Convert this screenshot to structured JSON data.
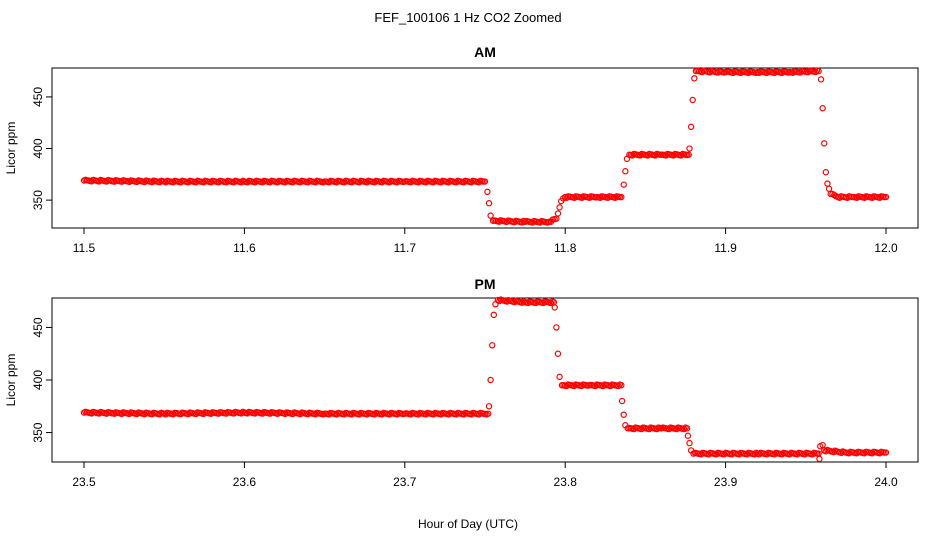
{
  "figure": {
    "suptitle": "FEF_100106  1 Hz CO2 Zoomed",
    "xlabel": "Hour of Day (UTC)"
  },
  "chart_data": [
    {
      "type": "scatter",
      "title": "AM",
      "ylabel": "Licor ppm",
      "xlabel": "",
      "xlim": [
        11.5,
        12.0
      ],
      "ylim": [
        323,
        478
      ],
      "x_ticks": [
        "11.5",
        "11.6",
        "11.7",
        "11.8",
        "11.9",
        "12.0"
      ],
      "y_ticks": [
        "350",
        "400",
        "450"
      ],
      "marker": "open-circle",
      "color": "#ff0000",
      "points": [
        {
          "x": 11.5,
          "y": 369
        },
        {
          "x": 11.55,
          "y": 368
        },
        {
          "x": 11.6,
          "y": 368
        },
        {
          "x": 11.65,
          "y": 368
        },
        {
          "x": 11.7,
          "y": 368
        },
        {
          "x": 11.75,
          "y": 368
        },
        {
          "x": 11.7515,
          "y": 358
        },
        {
          "x": 11.7525,
          "y": 347
        },
        {
          "x": 11.7535,
          "y": 335
        },
        {
          "x": 11.755,
          "y": 330
        },
        {
          "x": 11.775,
          "y": 329
        },
        {
          "x": 11.79,
          "y": 329
        },
        {
          "x": 11.7945,
          "y": 332
        },
        {
          "x": 11.7955,
          "y": 337
        },
        {
          "x": 11.7965,
          "y": 343
        },
        {
          "x": 11.7975,
          "y": 349
        },
        {
          "x": 11.8,
          "y": 353
        },
        {
          "x": 11.82,
          "y": 353
        },
        {
          "x": 11.835,
          "y": 353
        },
        {
          "x": 11.8365,
          "y": 365
        },
        {
          "x": 11.8375,
          "y": 378
        },
        {
          "x": 11.8385,
          "y": 390
        },
        {
          "x": 11.84,
          "y": 394
        },
        {
          "x": 11.86,
          "y": 394
        },
        {
          "x": 11.877,
          "y": 394
        },
        {
          "x": 11.8775,
          "y": 400
        },
        {
          "x": 11.8785,
          "y": 421
        },
        {
          "x": 11.8795,
          "y": 447
        },
        {
          "x": 11.8805,
          "y": 468
        },
        {
          "x": 11.8815,
          "y": 475
        },
        {
          "x": 11.9,
          "y": 474
        },
        {
          "x": 11.92,
          "y": 474
        },
        {
          "x": 11.94,
          "y": 474
        },
        {
          "x": 11.958,
          "y": 475
        },
        {
          "x": 11.9595,
          "y": 467
        },
        {
          "x": 11.9605,
          "y": 439
        },
        {
          "x": 11.9615,
          "y": 405
        },
        {
          "x": 11.9625,
          "y": 377
        },
        {
          "x": 11.9635,
          "y": 366
        },
        {
          "x": 11.9645,
          "y": 361
        },
        {
          "x": 11.9655,
          "y": 356
        },
        {
          "x": 11.97,
          "y": 353
        },
        {
          "x": 11.98,
          "y": 353
        },
        {
          "x": 12.0,
          "y": 353
        }
      ]
    },
    {
      "type": "scatter",
      "title": "PM",
      "ylabel": "Licor ppm",
      "xlabel": "",
      "xlim": [
        23.5,
        24.0
      ],
      "ylim": [
        322,
        478
      ],
      "x_ticks": [
        "23.5",
        "23.6",
        "23.7",
        "23.8",
        "23.9",
        "24.0"
      ],
      "y_ticks": [
        "350",
        "400",
        "450"
      ],
      "marker": "open-circle",
      "color": "#ff0000",
      "points": [
        {
          "x": 23.5,
          "y": 369
        },
        {
          "x": 23.55,
          "y": 368
        },
        {
          "x": 23.6,
          "y": 369
        },
        {
          "x": 23.65,
          "y": 368
        },
        {
          "x": 23.7,
          "y": 368
        },
        {
          "x": 23.752,
          "y": 368
        },
        {
          "x": 23.7525,
          "y": 375
        },
        {
          "x": 23.7535,
          "y": 400
        },
        {
          "x": 23.7545,
          "y": 433
        },
        {
          "x": 23.7555,
          "y": 462
        },
        {
          "x": 23.7565,
          "y": 472
        },
        {
          "x": 23.758,
          "y": 476
        },
        {
          "x": 23.775,
          "y": 474
        },
        {
          "x": 23.793,
          "y": 474
        },
        {
          "x": 23.7935,
          "y": 469
        },
        {
          "x": 23.7945,
          "y": 450
        },
        {
          "x": 23.7955,
          "y": 425
        },
        {
          "x": 23.7965,
          "y": 403
        },
        {
          "x": 23.798,
          "y": 395
        },
        {
          "x": 23.815,
          "y": 395
        },
        {
          "x": 23.835,
          "y": 395
        },
        {
          "x": 23.8355,
          "y": 380
        },
        {
          "x": 23.8365,
          "y": 367
        },
        {
          "x": 23.8375,
          "y": 357
        },
        {
          "x": 23.839,
          "y": 354
        },
        {
          "x": 23.86,
          "y": 354
        },
        {
          "x": 23.876,
          "y": 354
        },
        {
          "x": 23.8765,
          "y": 347
        },
        {
          "x": 23.8775,
          "y": 340
        },
        {
          "x": 23.8785,
          "y": 333
        },
        {
          "x": 23.88,
          "y": 330
        },
        {
          "x": 23.92,
          "y": 330
        },
        {
          "x": 23.958,
          "y": 330
        },
        {
          "x": 23.9585,
          "y": 325
        },
        {
          "x": 23.959,
          "y": 337
        },
        {
          "x": 23.9605,
          "y": 338
        },
        {
          "x": 23.9615,
          "y": 333
        },
        {
          "x": 23.975,
          "y": 331
        },
        {
          "x": 24.0,
          "y": 331
        }
      ]
    }
  ]
}
